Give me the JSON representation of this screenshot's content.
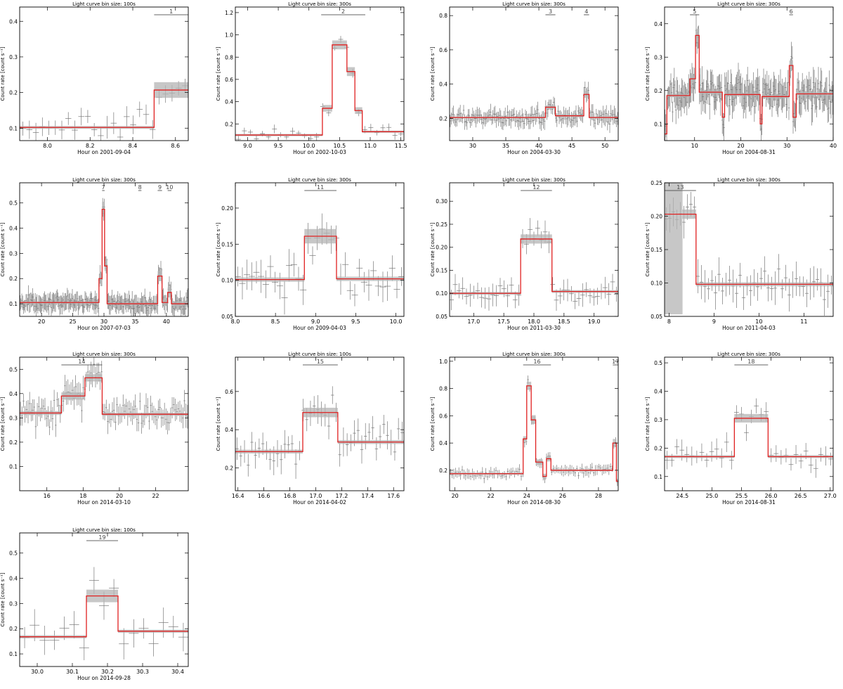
{
  "figure": {
    "ylabel": "Count rate [count s⁻¹]",
    "xlabel_prefix": "Hour on "
  },
  "chart_data": [
    {
      "type": "line",
      "title": "Light curve bin size: 100s",
      "xlabel": "Hour on 2001-09-04",
      "ylabel": "Count rate [count s⁻¹]",
      "xlim": [
        7.87,
        8.66
      ],
      "ylim": [
        0.065,
        0.44
      ],
      "xticks": [
        8.0,
        8.2,
        8.4,
        8.6
      ],
      "yticks": [
        0.1,
        0.2,
        0.3,
        0.4
      ],
      "xtick_labels": [
        "8.0",
        "8.2",
        "8.4",
        "8.6"
      ],
      "ytick_labels": [
        "0.1",
        "0.2",
        "0.3",
        "0.4"
      ],
      "blocks": [
        {
          "x0": 7.87,
          "x1": 8.5,
          "y": 0.102,
          "err": 0.004
        },
        {
          "x0": 8.5,
          "x1": 8.66,
          "y": 0.207,
          "err": 0.022
        }
      ],
      "flares": [
        {
          "label": "1",
          "x0": 8.5,
          "x1": 8.66
        }
      ],
      "noise": {
        "n": 26,
        "sigma": 0.035,
        "err": 0.025,
        "xerr": 0.014
      }
    },
    {
      "type": "line",
      "title": "Light curve bin size: 300s",
      "xlabel": "Hour on 2002-10-03",
      "ylabel": "Count rate [count s⁻¹]",
      "xlim": [
        8.8,
        11.55
      ],
      "ylim": [
        0.05,
        1.25
      ],
      "xticks": [
        9.0,
        9.5,
        10.0,
        10.5,
        11.0,
        11.5
      ],
      "yticks": [
        0.2,
        0.4,
        0.6,
        0.8,
        1.0,
        1.2
      ],
      "xtick_labels": [
        "9.0",
        "9.5",
        "10.0",
        "10.5",
        "11.0",
        "11.5"
      ],
      "ytick_labels": [
        "0.2",
        "0.4",
        "0.6",
        "0.8",
        "1.0",
        "1.2"
      ],
      "blocks": [
        {
          "x0": 8.8,
          "x1": 10.22,
          "y": 0.1,
          "err": 0.01
        },
        {
          "x0": 10.22,
          "x1": 10.38,
          "y": 0.34,
          "err": 0.03
        },
        {
          "x0": 10.38,
          "x1": 10.62,
          "y": 0.91,
          "err": 0.04
        },
        {
          "x0": 10.62,
          "x1": 10.75,
          "y": 0.67,
          "err": 0.04
        },
        {
          "x0": 10.75,
          "x1": 10.87,
          "y": 0.32,
          "err": 0.03
        },
        {
          "x0": 10.87,
          "x1": 11.55,
          "y": 0.13,
          "err": 0.01
        }
      ],
      "flares": [
        {
          "label": "2",
          "x0": 10.2,
          "x1": 10.92
        }
      ],
      "noise": {
        "n": 28,
        "sigma": 0.04,
        "err": 0.03,
        "xerr": 0.04
      }
    },
    {
      "type": "line",
      "title": "Light curve bin size: 300s",
      "xlabel": "Hour on 2004-03-30",
      "ylabel": "Count rate [count s⁻¹]",
      "xlim": [
        26.5,
        52.0
      ],
      "ylim": [
        0.07,
        0.85
      ],
      "xticks": [
        30,
        35,
        40,
        45,
        50
      ],
      "yticks": [
        0.2,
        0.4,
        0.6,
        0.8
      ],
      "xtick_labels": [
        "30",
        "35",
        "40",
        "45",
        "50"
      ],
      "ytick_labels": [
        "0.2",
        "0.4",
        "0.6",
        "0.8"
      ],
      "blocks": [
        {
          "x0": 26.5,
          "x1": 41.0,
          "y": 0.205,
          "err": 0.004
        },
        {
          "x0": 41.0,
          "x1": 42.5,
          "y": 0.265,
          "err": 0.01
        },
        {
          "x0": 42.5,
          "x1": 46.8,
          "y": 0.215,
          "err": 0.006
        },
        {
          "x0": 46.8,
          "x1": 47.6,
          "y": 0.34,
          "err": 0.02
        },
        {
          "x0": 47.6,
          "x1": 52.0,
          "y": 0.205,
          "err": 0.005
        }
      ],
      "flares": [
        {
          "label": "3",
          "x0": 41.0,
          "x1": 42.5
        },
        {
          "label": "4",
          "x0": 46.8,
          "x1": 47.6
        }
      ],
      "noise": {
        "n": 150,
        "sigma": 0.03,
        "err": 0.04,
        "xerr": 0.04
      }
    },
    {
      "type": "line",
      "title": "Light curve bin size: 300s",
      "xlabel": "Hour on 2004-08-31",
      "ylabel": "Count rate [count s⁻¹]",
      "xlim": [
        3.5,
        40.0
      ],
      "ylim": [
        0.05,
        0.45
      ],
      "xticks": [
        10,
        20,
        30,
        40
      ],
      "yticks": [
        0.1,
        0.2,
        0.3,
        0.4
      ],
      "xtick_labels": [
        "10",
        "20",
        "30",
        "40"
      ],
      "ytick_labels": [
        "0.1",
        "0.2",
        "0.3",
        "0.4"
      ],
      "blocks": [
        {
          "x0": 3.5,
          "x1": 4.0,
          "y": 0.07,
          "err": 0.01
        },
        {
          "x0": 4.0,
          "x1": 9.0,
          "y": 0.185,
          "err": 0.005
        },
        {
          "x0": 9.0,
          "x1": 10.2,
          "y": 0.235,
          "err": 0.01
        },
        {
          "x0": 10.2,
          "x1": 11.0,
          "y": 0.365,
          "err": 0.02
        },
        {
          "x0": 11.0,
          "x1": 16.0,
          "y": 0.195,
          "err": 0.005
        },
        {
          "x0": 16.0,
          "x1": 16.5,
          "y": 0.12,
          "err": 0.01
        },
        {
          "x0": 16.5,
          "x1": 24.2,
          "y": 0.188,
          "err": 0.004
        },
        {
          "x0": 24.2,
          "x1": 24.6,
          "y": 0.1,
          "err": 0.01
        },
        {
          "x0": 24.6,
          "x1": 30.5,
          "y": 0.182,
          "err": 0.005
        },
        {
          "x0": 30.5,
          "x1": 31.3,
          "y": 0.275,
          "err": 0.015
        },
        {
          "x0": 31.3,
          "x1": 32.0,
          "y": 0.12,
          "err": 0.01
        },
        {
          "x0": 32.0,
          "x1": 40.0,
          "y": 0.19,
          "err": 0.005
        }
      ],
      "flares": [
        {
          "label": "5",
          "x0": 9.0,
          "x1": 11.0
        },
        {
          "label": "6",
          "x0": 30.5,
          "x1": 31.3
        }
      ],
      "noise": {
        "n": 200,
        "sigma": 0.03,
        "err": 0.04,
        "xerr": 0.04
      }
    },
    {
      "type": "line",
      "title": "Light curve bin size: 300s",
      "xlabel": "Hour on 2007-07-03",
      "ylabel": "Count rate [count s⁻¹]",
      "xlim": [
        16.5,
        43.5
      ],
      "ylim": [
        0.05,
        0.58
      ],
      "xticks": [
        20,
        25,
        30,
        35,
        40
      ],
      "yticks": [
        0.1,
        0.2,
        0.3,
        0.4,
        0.5
      ],
      "xtick_labels": [
        "20",
        "25",
        "30",
        "35",
        "40"
      ],
      "ytick_labels": [
        "0.1",
        "0.2",
        "0.3",
        "0.4",
        "0.5"
      ],
      "blocks": [
        {
          "x0": 16.5,
          "x1": 29.2,
          "y": 0.105,
          "err": 0.004
        },
        {
          "x0": 29.2,
          "x1": 29.7,
          "y": 0.2,
          "err": 0.02
        },
        {
          "x0": 29.7,
          "x1": 30.1,
          "y": 0.475,
          "err": 0.03
        },
        {
          "x0": 30.1,
          "x1": 30.5,
          "y": 0.25,
          "err": 0.02
        },
        {
          "x0": 30.5,
          "x1": 38.6,
          "y": 0.1,
          "err": 0.004
        },
        {
          "x0": 38.6,
          "x1": 39.3,
          "y": 0.21,
          "err": 0.02
        },
        {
          "x0": 39.3,
          "x1": 40.2,
          "y": 0.105,
          "err": 0.01
        },
        {
          "x0": 40.2,
          "x1": 40.8,
          "y": 0.145,
          "err": 0.02
        },
        {
          "x0": 40.8,
          "x1": 43.5,
          "y": 0.1,
          "err": 0.01
        }
      ],
      "flares": [
        {
          "label": "7",
          "x0": 29.7,
          "x1": 30.1
        },
        {
          "label": "8",
          "x0": 35.5,
          "x1": 36.0
        },
        {
          "label": "9",
          "x0": 38.6,
          "x1": 39.3
        },
        {
          "label": "10",
          "x0": 40.2,
          "x1": 40.8
        }
      ],
      "noise": {
        "n": 200,
        "sigma": 0.02,
        "err": 0.03,
        "xerr": 0.04
      }
    },
    {
      "type": "line",
      "title": "Light curve bin size: 300s",
      "xlabel": "Hour on 2009-04-03",
      "ylabel": "Count rate [count s⁻¹]",
      "xlim": [
        8.0,
        10.1
      ],
      "ylim": [
        0.05,
        0.235
      ],
      "xticks": [
        8.0,
        8.5,
        9.0,
        9.5,
        10.0
      ],
      "yticks": [
        0.05,
        0.1,
        0.15,
        0.2
      ],
      "xtick_labels": [
        "8.0",
        "8.5",
        "9.0",
        "9.5",
        "10.0"
      ],
      "ytick_labels": [
        "0.05",
        "0.10",
        "0.15",
        "0.20"
      ],
      "blocks": [
        {
          "x0": 8.0,
          "x1": 8.86,
          "y": 0.101,
          "err": 0.003
        },
        {
          "x0": 8.86,
          "x1": 9.26,
          "y": 0.161,
          "err": 0.01
        },
        {
          "x0": 9.26,
          "x1": 10.1,
          "y": 0.102,
          "err": 0.003
        }
      ],
      "flares": [
        {
          "label": "11",
          "x0": 8.86,
          "x1": 9.26
        }
      ],
      "noise": {
        "n": 36,
        "sigma": 0.02,
        "err": 0.018,
        "xerr": 0.04
      }
    },
    {
      "type": "line",
      "title": "Light curve bin size: 300s",
      "xlabel": "Hour on 2011-03-30",
      "ylabel": "Count rate [count s⁻¹]",
      "xlim": [
        16.6,
        19.4
      ],
      "ylim": [
        0.05,
        0.34
      ],
      "xticks": [
        17.0,
        17.5,
        18.0,
        18.5,
        19.0
      ],
      "yticks": [
        0.05,
        0.1,
        0.15,
        0.2,
        0.25,
        0.3
      ],
      "xtick_labels": [
        "17.0",
        "17.5",
        "18.0",
        "18.5",
        "19.0"
      ],
      "ytick_labels": [
        "0.05",
        "0.10",
        "0.15",
        "0.20",
        "0.25",
        "0.30"
      ],
      "blocks": [
        {
          "x0": 16.6,
          "x1": 17.78,
          "y": 0.1,
          "err": 0.003
        },
        {
          "x0": 17.78,
          "x1": 18.3,
          "y": 0.218,
          "err": 0.01
        },
        {
          "x0": 18.3,
          "x1": 19.4,
          "y": 0.104,
          "err": 0.003
        }
      ],
      "flares": [
        {
          "label": "12",
          "x0": 17.78,
          "x1": 18.3
        }
      ],
      "noise": {
        "n": 45,
        "sigma": 0.022,
        "err": 0.02,
        "xerr": 0.04
      }
    },
    {
      "type": "line",
      "title": "Light curve bin size: 300s",
      "xlabel": "Hour on 2011-04-03",
      "ylabel": "Count rate [count s⁻¹]",
      "xlim": [
        7.9,
        11.65
      ],
      "ylim": [
        0.05,
        0.25
      ],
      "xticks": [
        8,
        9,
        10,
        11
      ],
      "yticks": [
        0.05,
        0.1,
        0.15,
        0.2,
        0.25
      ],
      "xtick_labels": [
        "8",
        "9",
        "10",
        "11"
      ],
      "ytick_labels": [
        "0.05",
        "0.10",
        "0.15",
        "0.20",
        "0.25"
      ],
      "blocks": [
        {
          "x0": 7.9,
          "x1": 8.3,
          "y": 0.203,
          "err": 0.15
        },
        {
          "x0": 8.3,
          "x1": 8.6,
          "y": 0.203,
          "err": 0.007
        },
        {
          "x0": 8.6,
          "x1": 11.65,
          "y": 0.098,
          "err": 0.003
        }
      ],
      "flares": [
        {
          "label": "13",
          "x0": 7.9,
          "x1": 8.6
        }
      ],
      "noise": {
        "n": 48,
        "sigma": 0.02,
        "err": 0.02,
        "xerr": 0.04
      }
    },
    {
      "type": "line",
      "title": "Light curve bin size: 300s",
      "xlabel": "Hour on 2014-03-10",
      "ylabel": "Count rate [count s⁻¹]",
      "xlim": [
        14.5,
        23.8
      ],
      "ylim": [
        0.0,
        0.55
      ],
      "xticks": [
        16,
        18,
        20,
        22
      ],
      "yticks": [
        0.1,
        0.2,
        0.3,
        0.4,
        0.5
      ],
      "xtick_labels": [
        "16",
        "18",
        "20",
        "22"
      ],
      "ytick_labels": [
        "0.1",
        "0.2",
        "0.3",
        "0.4",
        "0.5"
      ],
      "blocks": [
        {
          "x0": 14.5,
          "x1": 16.8,
          "y": 0.32,
          "err": 0.008
        },
        {
          "x0": 16.8,
          "x1": 18.1,
          "y": 0.39,
          "err": 0.015
        },
        {
          "x0": 18.1,
          "x1": 19.05,
          "y": 0.465,
          "err": 0.015
        },
        {
          "x0": 19.05,
          "x1": 23.8,
          "y": 0.315,
          "err": 0.006
        }
      ],
      "flares": [
        {
          "label": "14",
          "x0": 16.8,
          "x1": 19.05
        }
      ],
      "noise": {
        "n": 110,
        "sigma": 0.04,
        "err": 0.04,
        "xerr": 0.04
      }
    },
    {
      "type": "line",
      "title": "Light curve bin size: 100s",
      "xlabel": "Hour on 2014-04-02",
      "ylabel": "Count rate [count s⁻¹]",
      "xlim": [
        16.38,
        17.68
      ],
      "ylim": [
        0.08,
        0.78
      ],
      "xticks": [
        16.4,
        16.6,
        16.8,
        17.0,
        17.2,
        17.4,
        17.6
      ],
      "yticks": [
        0.2,
        0.4,
        0.6
      ],
      "xtick_labels": [
        "16.4",
        "16.6",
        "16.8",
        "17.0",
        "17.2",
        "17.4",
        "17.6"
      ],
      "ytick_labels": [
        "0.2",
        "0.4",
        "0.6"
      ],
      "blocks": [
        {
          "x0": 16.38,
          "x1": 16.9,
          "y": 0.285,
          "err": 0.01
        },
        {
          "x0": 16.9,
          "x1": 17.17,
          "y": 0.49,
          "err": 0.025
        },
        {
          "x0": 17.17,
          "x1": 17.68,
          "y": 0.335,
          "err": 0.01
        }
      ],
      "flares": [
        {
          "label": "15",
          "x0": 16.9,
          "x1": 17.17
        }
      ],
      "noise": {
        "n": 46,
        "sigma": 0.07,
        "err": 0.06,
        "xerr": 0.012
      }
    },
    {
      "type": "line",
      "title": "Light curve bin size: 300s",
      "xlabel": "Hour on 2014-08-30",
      "ylabel": "Count rate [count s⁻¹]",
      "xlim": [
        19.7,
        29.1
      ],
      "ylim": [
        0.05,
        1.03
      ],
      "xticks": [
        20,
        22,
        24,
        26,
        28
      ],
      "yticks": [
        0.2,
        0.4,
        0.6,
        0.8,
        1.0
      ],
      "xtick_labels": [
        "20",
        "22",
        "24",
        "26",
        "28"
      ],
      "ytick_labels": [
        "0.2",
        "0.4",
        "0.6",
        "0.8",
        "1.0"
      ],
      "blocks": [
        {
          "x0": 19.7,
          "x1": 23.8,
          "y": 0.175,
          "err": 0.006
        },
        {
          "x0": 23.8,
          "x1": 24.0,
          "y": 0.43,
          "err": 0.02
        },
        {
          "x0": 24.0,
          "x1": 24.25,
          "y": 0.82,
          "err": 0.03
        },
        {
          "x0": 24.25,
          "x1": 24.5,
          "y": 0.57,
          "err": 0.03
        },
        {
          "x0": 24.5,
          "x1": 24.9,
          "y": 0.26,
          "err": 0.02
        },
        {
          "x0": 24.9,
          "x1": 25.1,
          "y": 0.155,
          "err": 0.02
        },
        {
          "x0": 25.1,
          "x1": 25.35,
          "y": 0.285,
          "err": 0.02
        },
        {
          "x0": 25.35,
          "x1": 28.8,
          "y": 0.2,
          "err": 0.006
        },
        {
          "x0": 28.8,
          "x1": 29.0,
          "y": 0.4,
          "err": 0.03
        },
        {
          "x0": 29.0,
          "x1": 29.1,
          "y": 0.12,
          "err": 0.01
        }
      ],
      "flares": [
        {
          "label": "16",
          "x0": 23.8,
          "x1": 25.35
        },
        {
          "label": "17",
          "x0": 28.8,
          "x1": 29.1
        }
      ],
      "noise": {
        "n": 100,
        "sigma": 0.025,
        "err": 0.03,
        "xerr": 0.04
      }
    },
    {
      "type": "line",
      "title": "Light curve bin size: 300s",
      "xlabel": "Hour on 2014-08-31",
      "ylabel": "Count rate [count s⁻¹]",
      "xlim": [
        24.2,
        27.05
      ],
      "ylim": [
        0.05,
        0.52
      ],
      "xticks": [
        24.5,
        25.0,
        25.5,
        26.0,
        26.5,
        27.0
      ],
      "yticks": [
        0.1,
        0.2,
        0.3,
        0.4,
        0.5
      ],
      "xtick_labels": [
        "24.5",
        "25.0",
        "25.5",
        "26.0",
        "26.5",
        "27.0"
      ],
      "ytick_labels": [
        "0.1",
        "0.2",
        "0.3",
        "0.4",
        "0.5"
      ],
      "blocks": [
        {
          "x0": 24.2,
          "x1": 25.38,
          "y": 0.17,
          "err": 0.005
        },
        {
          "x0": 25.38,
          "x1": 25.95,
          "y": 0.305,
          "err": 0.015
        },
        {
          "x0": 25.95,
          "x1": 27.05,
          "y": 0.17,
          "err": 0.005
        }
      ],
      "flares": [
        {
          "label": "18",
          "x0": 25.38,
          "x1": 25.95
        }
      ],
      "noise": {
        "n": 34,
        "sigma": 0.035,
        "err": 0.03,
        "xerr": 0.04
      }
    },
    {
      "type": "line",
      "title": "Light curve bin size: 100s",
      "xlabel": "Hour on 2014-09-28",
      "ylabel": "Count rate [count s⁻¹]",
      "xlim": [
        29.95,
        30.43
      ],
      "ylim": [
        0.05,
        0.58
      ],
      "xticks": [
        30.0,
        30.1,
        30.2,
        30.3,
        30.4
      ],
      "yticks": [
        0.1,
        0.2,
        0.3,
        0.4,
        0.5
      ],
      "xtick_labels": [
        "30.0",
        "30.1",
        "30.2",
        "30.3",
        "30.4"
      ],
      "ytick_labels": [
        "0.1",
        "0.2",
        "0.3",
        "0.4",
        "0.5"
      ],
      "blocks": [
        {
          "x0": 29.95,
          "x1": 30.14,
          "y": 0.168,
          "err": 0.006
        },
        {
          "x0": 30.14,
          "x1": 30.23,
          "y": 0.33,
          "err": 0.025
        },
        {
          "x0": 30.23,
          "x1": 30.43,
          "y": 0.19,
          "err": 0.006
        }
      ],
      "flares": [
        {
          "label": "19",
          "x0": 30.14,
          "x1": 30.23
        }
      ],
      "noise": {
        "n": 17,
        "sigma": 0.06,
        "err": 0.05,
        "xerr": 0.014
      }
    }
  ]
}
